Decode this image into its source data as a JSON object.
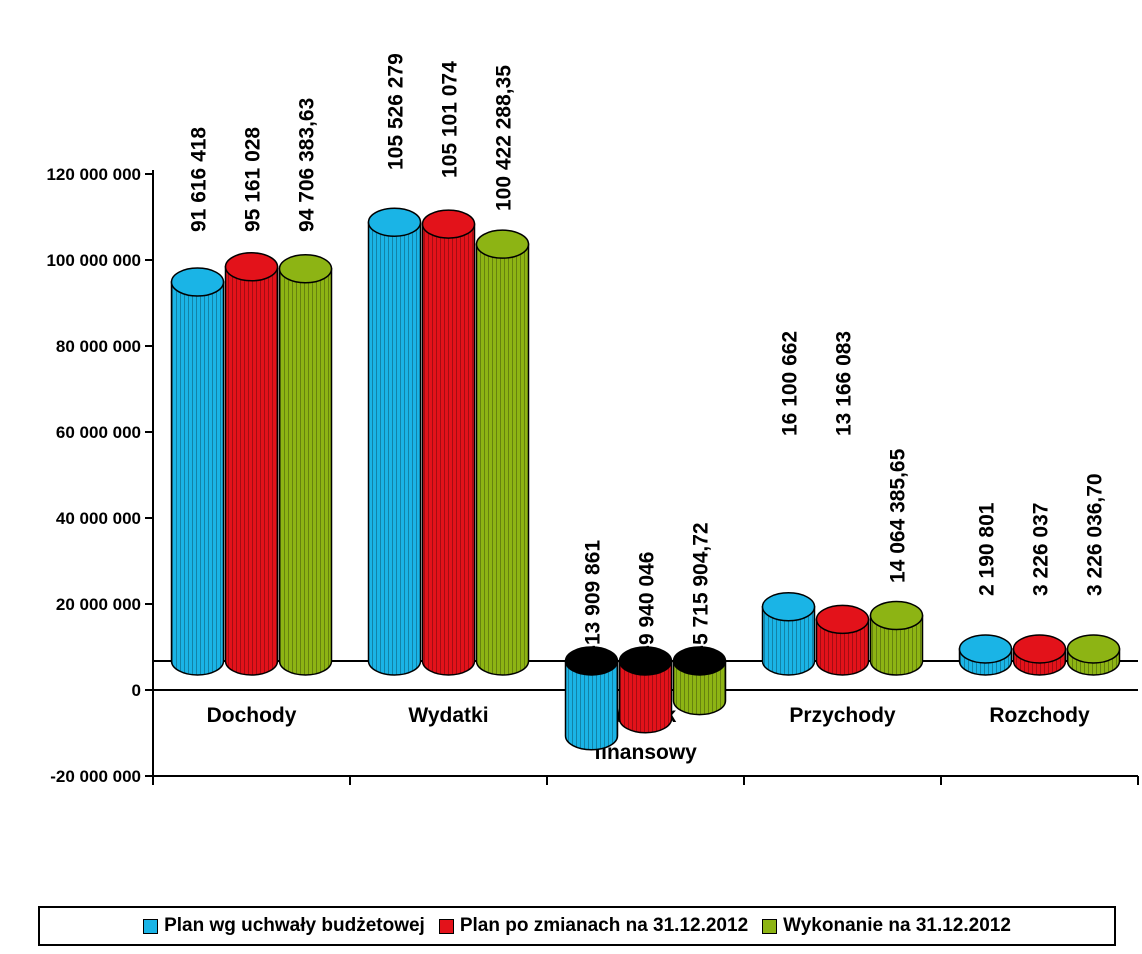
{
  "chart_data": {
    "type": "bar",
    "style": "3d-cylinder",
    "categories": [
      "Dochody",
      "Wydatki",
      "Wynik finansowy",
      "Przychody",
      "Rozchody"
    ],
    "category_lines": [
      [
        "Dochody"
      ],
      [
        "Wydatki"
      ],
      [
        "Wynik",
        "finansowy"
      ],
      [
        "Przychody"
      ],
      [
        "Rozchody"
      ]
    ],
    "series": [
      {
        "name": "Plan wg uchwały budżetowej",
        "values": [
          91616418,
          105526279,
          -13909861,
          16100662,
          2190801
        ],
        "labels": [
          "91 616 418",
          "105 526 279",
          "-13 909 861",
          "16 100 662",
          "2 190 801"
        ],
        "color": "#1ab4e6"
      },
      {
        "name": "Plan po zmianach na 31.12.2012",
        "values": [
          95161028,
          105101074,
          -9940046,
          13166083,
          3226037
        ],
        "labels": [
          "95 161 028",
          "105 101 074",
          "-9 940 046",
          "13 166 083",
          "3 226 037"
        ],
        "color": "#e3121a"
      },
      {
        "name": "Wykonanie na 31.12.2012",
        "values": [
          94706383.63,
          100422288.35,
          -5715904.72,
          14064385.65,
          3226036.7
        ],
        "labels": [
          "94 706 383,63",
          "100 422 288,35",
          "-5 715 904,72",
          "14 064 385,65",
          "3 226 036,70"
        ],
        "color": "#8db414"
      }
    ],
    "negative_top_color": "#000000",
    "yticks": [
      -20000000,
      0,
      20000000,
      40000000,
      60000000,
      80000000,
      100000000,
      120000000
    ],
    "ytick_labels": [
      "-20 000 000",
      "0",
      "20 000 000",
      "40 000 000",
      "60 000 000",
      "80 000 000",
      "100 000 000",
      "120 000 000"
    ],
    "ylim": [
      -20000000,
      120000000
    ],
    "grid": false,
    "legend_position": "bottom"
  }
}
